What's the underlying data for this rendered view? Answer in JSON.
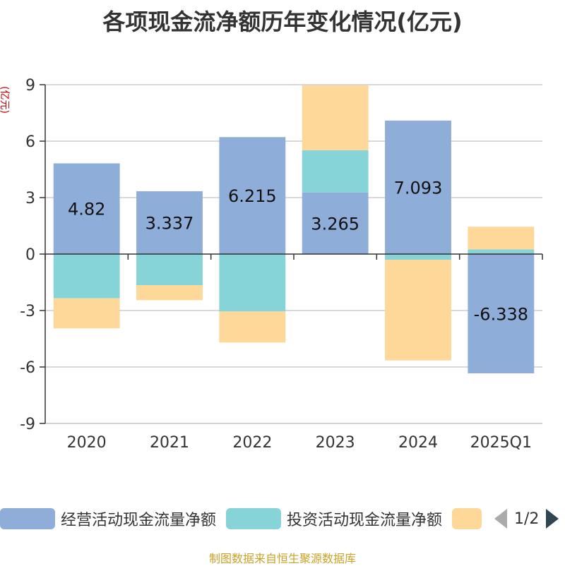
{
  "title": "各项现金流净额历年变化情况(亿元)",
  "unit": "(亿元)",
  "source": "制图数据来自恒生聚源数据库",
  "legend": {
    "items": [
      {
        "label": "经营活动现金流量净额",
        "color": "#8fadd9"
      },
      {
        "label": "投资活动现金流量净额",
        "color": "#86d4d8"
      },
      {
        "label": "",
        "color": "#fdd898"
      }
    ],
    "page_indicator": "1/2"
  },
  "chart_data": {
    "type": "bar",
    "stacked": true,
    "categories": [
      "2020",
      "2021",
      "2022",
      "2023",
      "2024",
      "2025Q1"
    ],
    "series": [
      {
        "name": "经营活动现金流量净额",
        "color": "#8fadd9",
        "values": [
          4.82,
          3.337,
          6.215,
          3.265,
          7.093,
          -6.338
        ],
        "labels": [
          "4.82",
          "3.337",
          "6.215",
          "3.265",
          "7.093",
          "-6.338"
        ]
      },
      {
        "name": "投资活动现金流量净额",
        "color": "#86d4d8",
        "values": [
          -2.35,
          -1.65,
          -3.05,
          2.25,
          -0.3,
          0.25
        ]
      },
      {
        "name": "",
        "color": "#fdd898",
        "values": [
          -1.6,
          -0.8,
          -1.65,
          3.45,
          -5.35,
          1.2
        ]
      }
    ],
    "ylim": [
      -9,
      9
    ],
    "yticks": [
      -9,
      -6,
      -3,
      0,
      3,
      6,
      9
    ],
    "grid": true,
    "legend_position": "bottom"
  }
}
